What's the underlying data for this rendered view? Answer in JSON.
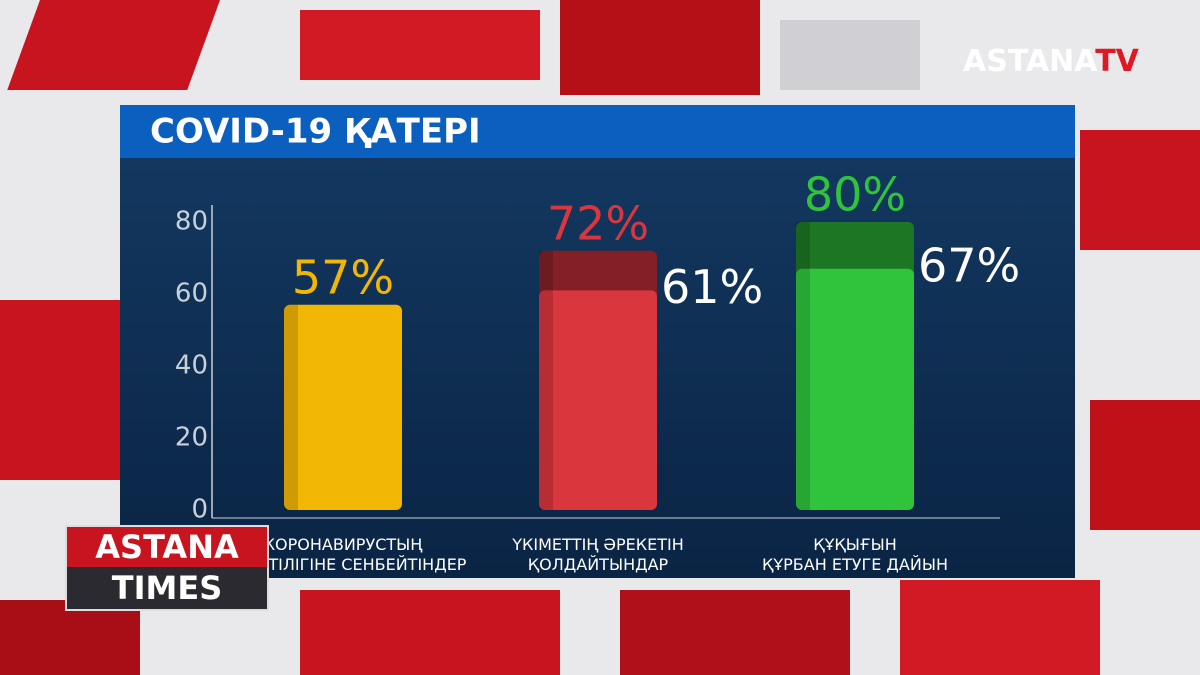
{
  "chart_data": {
    "type": "bar",
    "title": "COVID-19 ҚАТЕРІ",
    "categories": [
      "КОРОНАВИРУСТЫҢ\nҚАУІПТІЛІГІНЕ СЕНБЕЙТІНДЕР",
      "ҮКІМЕТТІҢ ӘРЕКЕТІН\nҚОЛДАЙТЫНДАР",
      "ҚҰҚЫҒЫН\nҚҰРБАН ЕТУГЕ ДАЙЫН"
    ],
    "colors": [
      "#f2b705",
      "#d9363e",
      "#2fc43c"
    ],
    "series": [
      {
        "values": [
          57,
          72,
          80
        ],
        "value_labels": [
          "57%",
          "72%",
          "80%"
        ]
      },
      {
        "values": [
          null,
          61,
          67
        ],
        "value_labels": [
          null,
          "61%",
          "67%"
        ],
        "color": "#ffffff"
      }
    ],
    "ylim": [
      0,
      80
    ],
    "yticks": [
      0,
      20,
      40,
      60,
      80
    ]
  },
  "logo": {
    "brand": "ASTANA",
    "suffix": "TV"
  },
  "show": {
    "line1": "ASTANA",
    "line2": "TIMES"
  }
}
